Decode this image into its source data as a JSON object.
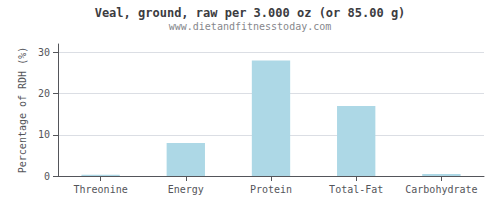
{
  "chart_data": {
    "type": "bar",
    "title": "Veal, ground, raw per 3.000 oz (or 85.00 g)",
    "subtitle": "www.dietandfitnesstoday.com",
    "ylabel": "Percentage of RDH (%)",
    "categories": [
      "Threonine",
      "Energy",
      "Protein",
      "Total-Fat",
      "Carbohydrate"
    ],
    "values": [
      0.3,
      8.0,
      28.0,
      17.0,
      0.5
    ],
    "color": "#add8e6",
    "ylim": [
      0,
      32
    ],
    "yticks": [
      0,
      10,
      20,
      30
    ],
    "grid": true
  }
}
